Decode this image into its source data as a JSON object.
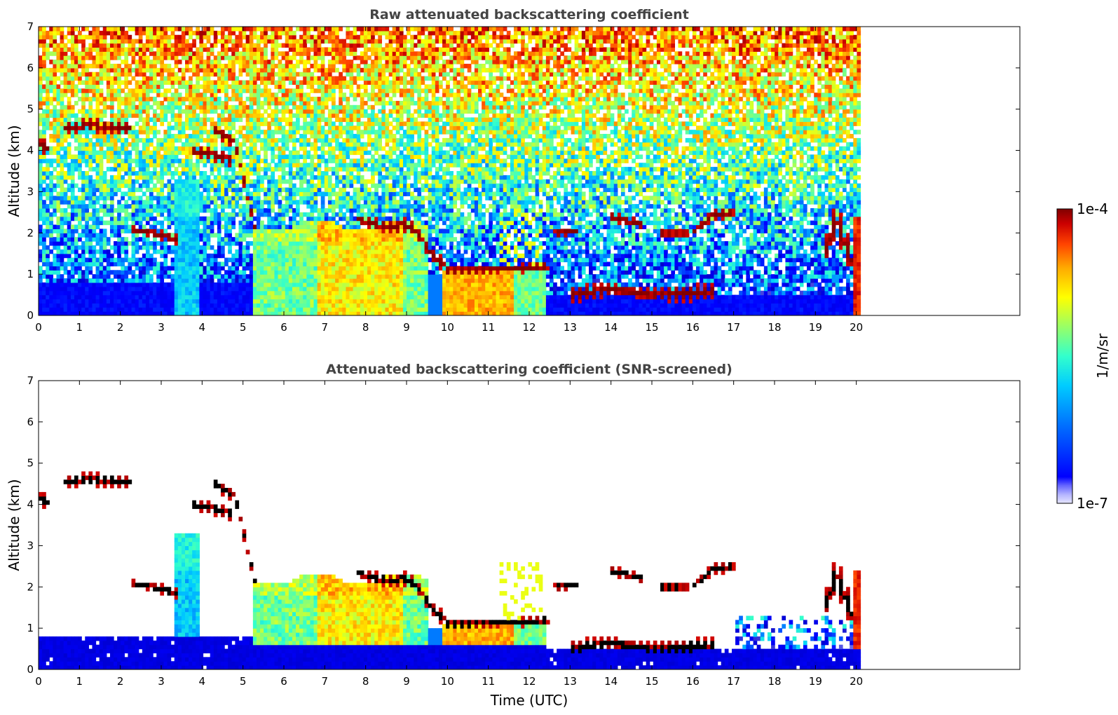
{
  "chart_data": [
    {
      "type": "heatmap",
      "title": "Raw attenuated backscattering coefficient",
      "xlabel": "",
      "ylabel": "Altitude (km)",
      "xlim": [
        0,
        24
      ],
      "ylim": [
        0,
        7
      ],
      "x_ticks": [
        0,
        1,
        2,
        3,
        4,
        5,
        6,
        7,
        8,
        9,
        10,
        11,
        12,
        13,
        14,
        15,
        16,
        17,
        18,
        19,
        20
      ],
      "y_ticks": [
        0,
        1,
        2,
        3,
        4,
        5,
        6,
        7
      ],
      "data_end_time": 20.1,
      "screened": false,
      "features": [
        {
          "name": "",
          "t": [
            0.0,
            0.3
          ],
          "alt": [
            3.9,
            4.4
          ],
          "level": "high"
        },
        {
          "name": "",
          "t": [
            0.6,
            2.25
          ],
          "alt": [
            4.45,
            4.7
          ],
          "level": "high"
        },
        {
          "name": "",
          "t": [
            2.2,
            3.4
          ],
          "alt": [
            1.8,
            2.15
          ],
          "level": "high"
        },
        {
          "name": "",
          "t": [
            3.75,
            4.75
          ],
          "alt": [
            3.7,
            4.1
          ],
          "level": "high"
        },
        {
          "name": "",
          "t": [
            3.4,
            3.9
          ],
          "alt": [
            0.0,
            3.3
          ],
          "level": "mid-low"
        },
        {
          "name": "",
          "t": [
            5.2,
            9.5
          ],
          "alt": [
            0.0,
            2.3
          ],
          "level": "mid"
        },
        {
          "name": "",
          "t": [
            9.9,
            12.4
          ],
          "alt": [
            0.0,
            1.2
          ],
          "level": "mid-high"
        },
        {
          "name": "",
          "t": [
            12.4,
            20.0
          ],
          "alt": [
            0.0,
            0.6
          ],
          "level": "low"
        },
        {
          "name": "",
          "t": [
            14.0,
            17.0
          ],
          "alt": [
            1.9,
            2.6
          ],
          "level": "high"
        },
        {
          "name": "",
          "t": [
            19.9,
            20.1
          ],
          "alt": [
            0.0,
            2.4
          ],
          "level": "high"
        }
      ]
    },
    {
      "type": "heatmap",
      "title": "Attenuated backscattering coefficient (SNR-screened)",
      "xlabel": "Time (UTC)",
      "ylabel": "Altitude (km)",
      "xlim": [
        0,
        24
      ],
      "ylim": [
        0,
        7
      ],
      "x_ticks": [
        0,
        1,
        2,
        3,
        4,
        5,
        6,
        7,
        8,
        9,
        10,
        11,
        12,
        13,
        14,
        15,
        16,
        17,
        18,
        19,
        20
      ],
      "y_ticks": [
        0,
        1,
        2,
        3,
        4,
        5,
        6,
        7
      ],
      "data_end_time": 20.1,
      "screened": true
    }
  ],
  "colorbar": {
    "label": "1/m/sr",
    "max_label": "1e-4",
    "min_label": "1e-7",
    "colormap": "jet",
    "colors": [
      "#e6e6ff",
      "#b3b3ff",
      "#0000cc",
      "#0000ff",
      "#0066ff",
      "#00ccff",
      "#33ffcc",
      "#99ff66",
      "#ffff00",
      "#ffaa00",
      "#ff4400",
      "#cc0000",
      "#800000"
    ]
  }
}
